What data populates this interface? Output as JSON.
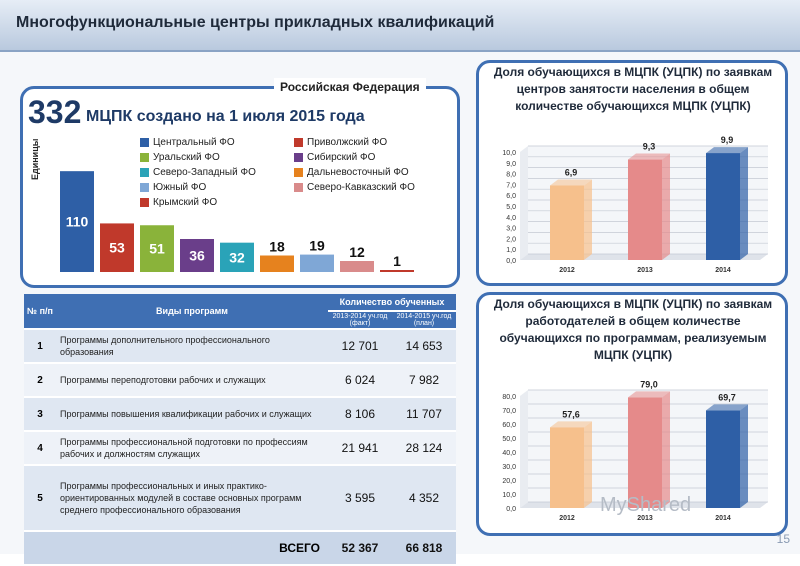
{
  "header": {
    "title": "Многофункциональные центры прикладных квалификаций"
  },
  "left_panel": {
    "tab_label": "Российская Федерация",
    "big_number": "332",
    "big_text": "МЦПК создано на 1 июля 2015 года",
    "units_label": "Единицы",
    "legend": [
      {
        "label": "Центральный ФО",
        "color": "#2e5fa6"
      },
      {
        "label": "Приволжский ФО",
        "color": "#c0392b"
      },
      {
        "label": "Уральский ФО",
        "color": "#8ab33a"
      },
      {
        "label": "Сибирский ФО",
        "color": "#6a3e8a"
      },
      {
        "label": "Северо-Западный ФО",
        "color": "#2aa3b8"
      },
      {
        "label": "Дальневосточный ФО",
        "color": "#e6821e"
      },
      {
        "label": "Южный ФО",
        "color": "#7fa7d6"
      },
      {
        "label": "Северо-Кавказский ФО",
        "color": "#d98b8b"
      },
      {
        "label": "Крымский ФО",
        "color": "#c0392b"
      }
    ]
  },
  "table": {
    "headers": {
      "num": "№ п/п",
      "programs": "Виды программ",
      "count": "Количество обученных",
      "y1": "2013-2014 уч.год (факт)",
      "y2": "2014-2015 уч.год (план)"
    },
    "rows": [
      {
        "idx": "1",
        "name": "Программы дополнительного профессионального образования",
        "v1": "12 701",
        "v2": "14 653"
      },
      {
        "idx": "2",
        "name": "Программы переподготовки рабочих и служащих",
        "v1": "6 024",
        "v2": "7 982"
      },
      {
        "idx": "3",
        "name": "Программы повышения квалификации рабочих и служащих",
        "v1": "8 106",
        "v2": "11 707"
      },
      {
        "idx": "4",
        "name": "Программы профессиональной подготовки по профессиям рабочих и должностям служащих",
        "v1": "21 941",
        "v2": "28 124"
      },
      {
        "idx": "5",
        "name": "Программы профессиональных и иных практико-ориентированных модулей в составе основных программ среднего профессионального образования",
        "v1": "3 595",
        "v2": "4 352"
      }
    ],
    "total": {
      "label": "ВСЕГО",
      "v1": "52 367",
      "v2": "66 818"
    }
  },
  "right_top": {
    "title": "Доля обучающихся в МЦПК (УЦПК) по заявкам центров занятости населения в общем количестве обучающихся МЦПК (УЦПК)"
  },
  "right_bottom": {
    "title": "Доля обучающихся в МЦПК (УЦПК) по заявкам работодателей в общем количестве обучающихся по программам, реализуемым МЦПК (УЦПК)"
  },
  "page_number": "15",
  "watermark": "MyShared",
  "chart_data": [
    {
      "type": "bar",
      "categories": [
        "Центральный ФО",
        "Приволжский ФО",
        "Уральский ФО",
        "Сибирский ФО",
        "Северо-Западный ФО",
        "Дальневосточный ФО",
        "Южный ФО",
        "Северо-Кавказский ФО",
        "Крымский ФО"
      ],
      "values": [
        110,
        53,
        51,
        36,
        32,
        18,
        19,
        12,
        1
      ],
      "title": "",
      "ylabel": "Единицы",
      "ylim": [
        0,
        120
      ]
    },
    {
      "type": "bar",
      "categories": [
        "2012",
        "2013",
        "2014"
      ],
      "values": [
        6.9,
        9.3,
        9.9
      ],
      "ylim": [
        0,
        10
      ],
      "ticks": [
        "0,0",
        "1,0",
        "2,0",
        "3,0",
        "4,0",
        "5,0",
        "6,0",
        "7,0",
        "8,0",
        "9,0",
        "10,0"
      ],
      "labels": [
        "6,9",
        "9,3",
        "9,9"
      ],
      "colors": [
        "#f6c08c",
        "#e58a8a",
        "#2e5fa6"
      ]
    },
    {
      "type": "bar",
      "categories": [
        "2012",
        "2013",
        "2014"
      ],
      "values": [
        57.6,
        79.0,
        69.7
      ],
      "ylim": [
        0,
        80
      ],
      "ticks": [
        "0,0",
        "10,0",
        "20,0",
        "30,0",
        "40,0",
        "50,0",
        "60,0",
        "70,0",
        "80,0"
      ],
      "labels": [
        "57,6",
        "79,0",
        "69,7"
      ],
      "colors": [
        "#f6c08c",
        "#e58a8a",
        "#2e5fa6"
      ]
    }
  ]
}
